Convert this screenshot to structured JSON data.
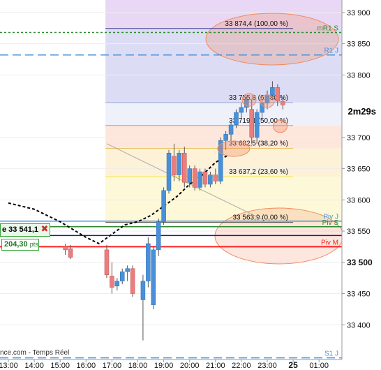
{
  "chart": {
    "timer": "2m29s",
    "position": {
      "price_label": "e 33 541,1",
      "close_glyph": "✖",
      "pnl_value": "204,30",
      "pnl_unit": "pts"
    },
    "footer": "nce.com - Temps Réel",
    "colors": {
      "up": "#4a90d9",
      "down": "#e87e7e",
      "accent_green": "#2e8b2e",
      "pivot_red": "#ff2020"
    }
  },
  "chart_data": {
    "type": "candlestick",
    "ylim": [
      33350,
      33920
    ],
    "y_ticks": [
      {
        "value": 33900,
        "label": "33 900"
      },
      {
        "value": 33850,
        "label": "33 850"
      },
      {
        "value": 33800,
        "label": "33 800"
      },
      {
        "value": 33700,
        "label": "33 700"
      },
      {
        "value": 33650,
        "label": "33 650"
      },
      {
        "value": 33600,
        "label": "33 600"
      },
      {
        "value": 33550,
        "label": "33 550"
      },
      {
        "value": 33500,
        "label": "33 500"
      },
      {
        "value": 33450,
        "label": "33 450"
      },
      {
        "value": 33400,
        "label": "33 400"
      }
    ],
    "x_ticks": [
      {
        "hour": 13,
        "label": "13:00"
      },
      {
        "hour": 14,
        "label": "14:00"
      },
      {
        "hour": 15,
        "label": "15:00"
      },
      {
        "hour": 16,
        "label": "16:00"
      },
      {
        "hour": 17,
        "label": "17:00"
      },
      {
        "hour": 18,
        "label": "18:00"
      },
      {
        "hour": 19,
        "label": "19:00"
      },
      {
        "hour": 20,
        "label": "20:00"
      },
      {
        "hour": 21,
        "label": "21:00"
      },
      {
        "hour": 22,
        "label": "22:00"
      },
      {
        "hour": 23,
        "label": "23:00"
      },
      {
        "hour": 24,
        "label": "25"
      },
      {
        "hour": 25,
        "label": "01:00"
      }
    ],
    "fibonacci": [
      {
        "value": 33874.4,
        "label": "33 874,4 (100,00 %)",
        "color": "#3b3b8f"
      },
      {
        "value": 33755.8,
        "label": "33 755,8 (61,80 %)",
        "color": "#9aa8d8"
      },
      {
        "value": 33719.1,
        "label": "33 719,1 (50,00 %)",
        "color": "#f08a5d"
      },
      {
        "value": 33682.5,
        "label": "33 682,5 (38,20 %)",
        "color": "#e8c060"
      },
      {
        "value": 33637.2,
        "label": "33 637,2 (23,60 %)",
        "color": "#f2e64a"
      },
      {
        "value": 33563.9,
        "label": "33 563,9 (0,00 %)",
        "color": "#555555"
      }
    ],
    "levels": [
      {
        "name": "mR1 S",
        "value": 33868,
        "color": "#2e8b2e",
        "style": "dotted"
      },
      {
        "name": "R1 J",
        "value": 33832,
        "color": "#4a90d9",
        "style": "dashed"
      },
      {
        "name": "Piv J",
        "value": 33566,
        "color": "#4a90d9",
        "style": "solid"
      },
      {
        "name": "Piv S",
        "value": 33557,
        "color": "#2e8b2e",
        "style": "solid"
      },
      {
        "name": "",
        "value": 33543,
        "color": "#1a1a8f",
        "style": "solid"
      },
      {
        "name": "Piv M",
        "value": 33525,
        "color": "#ff2020",
        "style": "solid"
      },
      {
        "name": "S1 J",
        "value": 33347,
        "color": "#4a90d9",
        "style": "dashed"
      }
    ],
    "candles": [
      {
        "t": 15.2,
        "o": 33525,
        "h": 33530,
        "l": 33512,
        "c": 33520
      },
      {
        "t": 15.4,
        "o": 33522,
        "h": 33528,
        "l": 33505,
        "c": 33508
      },
      {
        "t": 16.8,
        "o": 33520,
        "h": 33528,
        "l": 33475,
        "c": 33480
      },
      {
        "t": 17.0,
        "o": 33478,
        "h": 33500,
        "l": 33450,
        "c": 33460
      },
      {
        "t": 17.2,
        "o": 33462,
        "h": 33475,
        "l": 33455,
        "c": 33470
      },
      {
        "t": 17.4,
        "o": 33470,
        "h": 33490,
        "l": 33465,
        "c": 33485
      },
      {
        "t": 17.6,
        "o": 33485,
        "h": 33495,
        "l": 33470,
        "c": 33490
      },
      {
        "t": 17.8,
        "o": 33490,
        "h": 33495,
        "l": 33445,
        "c": 33450
      },
      {
        "t": 18.2,
        "o": 33440,
        "h": 33480,
        "l": 33375,
        "c": 33470
      },
      {
        "t": 18.4,
        "o": 33470,
        "h": 33540,
        "l": 33460,
        "c": 33530
      },
      {
        "t": 18.6,
        "o": 33432,
        "h": 33525,
        "l": 33425,
        "c": 33520
      },
      {
        "t": 18.8,
        "o": 33520,
        "h": 33570,
        "l": 33510,
        "c": 33565
      },
      {
        "t": 19.0,
        "o": 33565,
        "h": 33620,
        "l": 33560,
        "c": 33615
      },
      {
        "t": 19.2,
        "o": 33615,
        "h": 33680,
        "l": 33610,
        "c": 33675
      },
      {
        "t": 19.4,
        "o": 33670,
        "h": 33690,
        "l": 33630,
        "c": 33640
      },
      {
        "t": 19.6,
        "o": 33640,
        "h": 33680,
        "l": 33630,
        "c": 33675
      },
      {
        "t": 19.8,
        "o": 33675,
        "h": 33685,
        "l": 33620,
        "c": 33628
      },
      {
        "t": 20.0,
        "o": 33628,
        "h": 33655,
        "l": 33620,
        "c": 33650
      },
      {
        "t": 20.2,
        "o": 33650,
        "h": 33655,
        "l": 33615,
        "c": 33620
      },
      {
        "t": 20.4,
        "o": 33620,
        "h": 33650,
        "l": 33615,
        "c": 33645
      },
      {
        "t": 20.6,
        "o": 33645,
        "h": 33650,
        "l": 33620,
        "c": 33625
      },
      {
        "t": 20.8,
        "o": 33625,
        "h": 33645,
        "l": 33620,
        "c": 33640
      },
      {
        "t": 21.0,
        "o": 33640,
        "h": 33650,
        "l": 33625,
        "c": 33630
      },
      {
        "t": 21.2,
        "o": 33630,
        "h": 33700,
        "l": 33625,
        "c": 33695
      },
      {
        "t": 21.4,
        "o": 33695,
        "h": 33710,
        "l": 33680,
        "c": 33705
      },
      {
        "t": 21.6,
        "o": 33705,
        "h": 33725,
        "l": 33695,
        "c": 33720
      },
      {
        "t": 21.8,
        "o": 33720,
        "h": 33745,
        "l": 33715,
        "c": 33740
      },
      {
        "t": 22.0,
        "o": 33740,
        "h": 33755,
        "l": 33730,
        "c": 33748
      },
      {
        "t": 22.2,
        "o": 33748,
        "h": 33765,
        "l": 33740,
        "c": 33760
      },
      {
        "t": 22.4,
        "o": 33745,
        "h": 33760,
        "l": 33690,
        "c": 33700
      },
      {
        "t": 22.6,
        "o": 33700,
        "h": 33745,
        "l": 33690,
        "c": 33740
      },
      {
        "t": 22.8,
        "o": 33740,
        "h": 33760,
        "l": 33730,
        "c": 33755
      },
      {
        "t": 23.0,
        "o": 33755,
        "h": 33775,
        "l": 33745,
        "c": 33768
      },
      {
        "t": 23.2,
        "o": 33768,
        "h": 33790,
        "l": 33760,
        "c": 33780
      },
      {
        "t": 23.4,
        "o": 33780,
        "h": 33785,
        "l": 33750,
        "c": 33758
      },
      {
        "t": 23.6,
        "o": 33758,
        "h": 33765,
        "l": 33745,
        "c": 33752
      }
    ],
    "moving_average": [
      {
        "t": 13.0,
        "v": 33595
      },
      {
        "t": 14.0,
        "v": 33585
      },
      {
        "t": 15.0,
        "v": 33565
      },
      {
        "t": 16.0,
        "v": 33540
      },
      {
        "t": 16.5,
        "v": 33530
      },
      {
        "t": 17.0,
        "v": 33545
      },
      {
        "t": 17.5,
        "v": 33560
      },
      {
        "t": 18.0,
        "v": 33565
      },
      {
        "t": 18.5,
        "v": 33575
      },
      {
        "t": 19.0,
        "v": 33590
      },
      {
        "t": 19.5,
        "v": 33605
      },
      {
        "t": 20.0,
        "v": 33625
      },
      {
        "t": 20.5,
        "v": 33640
      },
      {
        "t": 21.0,
        "v": 33660
      },
      {
        "t": 21.5,
        "v": 33672
      }
    ],
    "trendline": [
      {
        "t": 16.8,
        "v": 33690
      },
      {
        "t": 23.0,
        "v": 33565
      }
    ],
    "highlights": [
      {
        "t": 22.3,
        "v": 33760
      },
      {
        "t": 23.0,
        "v": 33758
      },
      {
        "t": 23.5,
        "v": 33718
      },
      {
        "t": 21.7,
        "v": 33682
      }
    ]
  }
}
